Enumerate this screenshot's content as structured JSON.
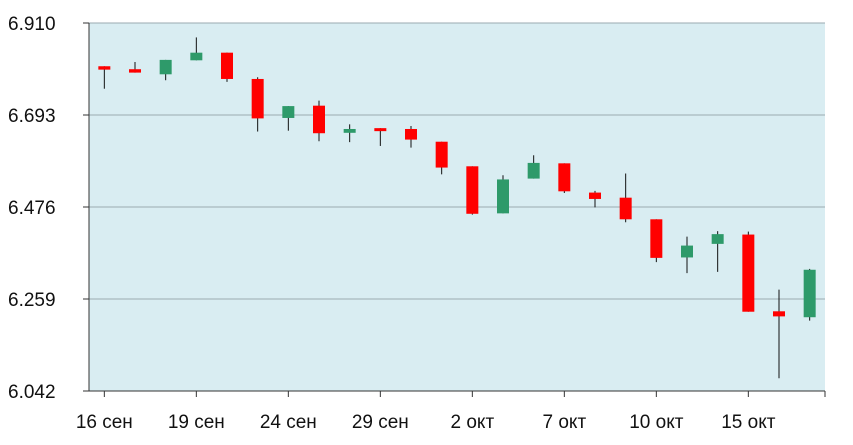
{
  "chart_data": {
    "type": "candlestick",
    "title": "",
    "xlabel": "",
    "ylabel": "",
    "ylim": [
      6.042,
      6.91
    ],
    "yticks": [
      "6.910",
      "6.693",
      "6.476",
      "6.259",
      "6.042"
    ],
    "xticks": [
      {
        "label": "16 сен",
        "index": 0
      },
      {
        "label": "19 сен",
        "index": 3
      },
      {
        "label": "24 сен",
        "index": 6
      },
      {
        "label": "29 сен",
        "index": 9
      },
      {
        "label": "2 окт",
        "index": 12
      },
      {
        "label": "7 окт",
        "index": 15
      },
      {
        "label": "10 окт",
        "index": 18
      },
      {
        "label": "15 окт",
        "index": 21
      }
    ],
    "grid": true,
    "colors": {
      "up": "#2e9a6a",
      "down": "#ff0000",
      "background": "#d9edf2",
      "grid": "#9aaab0",
      "wick": "#111111"
    },
    "candles": [
      {
        "open": 6.808,
        "close": 6.8,
        "high": 6.808,
        "low": 6.755
      },
      {
        "open": 6.801,
        "close": 6.793,
        "high": 6.818,
        "low": 6.793
      },
      {
        "open": 6.789,
        "close": 6.823,
        "high": 6.823,
        "low": 6.775
      },
      {
        "open": 6.822,
        "close": 6.84,
        "high": 6.876,
        "low": 6.822
      },
      {
        "open": 6.84,
        "close": 6.778,
        "high": 6.84,
        "low": 6.771
      },
      {
        "open": 6.778,
        "close": 6.685,
        "high": 6.782,
        "low": 6.654
      },
      {
        "open": 6.686,
        "close": 6.714,
        "high": 6.714,
        "low": 6.656
      },
      {
        "open": 6.715,
        "close": 6.65,
        "high": 6.727,
        "low": 6.631
      },
      {
        "open": 6.651,
        "close": 6.66,
        "high": 6.671,
        "low": 6.629
      },
      {
        "open": 6.662,
        "close": 6.66,
        "high": 6.662,
        "low": 6.62
      },
      {
        "open": 6.66,
        "close": 6.635,
        "high": 6.667,
        "low": 6.616
      },
      {
        "open": 6.63,
        "close": 6.569,
        "high": 6.63,
        "low": 6.553
      },
      {
        "open": 6.572,
        "close": 6.46,
        "high": 6.572,
        "low": 6.458
      },
      {
        "open": 6.461,
        "close": 6.541,
        "high": 6.551,
        "low": 6.461
      },
      {
        "open": 6.543,
        "close": 6.58,
        "high": 6.598,
        "low": 6.543
      },
      {
        "open": 6.579,
        "close": 6.513,
        "high": 6.579,
        "low": 6.509
      },
      {
        "open": 6.51,
        "close": 6.495,
        "high": 6.514,
        "low": 6.475
      },
      {
        "open": 6.498,
        "close": 6.447,
        "high": 6.555,
        "low": 6.44
      },
      {
        "open": 6.447,
        "close": 6.356,
        "high": 6.447,
        "low": 6.346
      },
      {
        "open": 6.357,
        "close": 6.385,
        "high": 6.406,
        "low": 6.32
      },
      {
        "open": 6.389,
        "close": 6.412,
        "high": 6.419,
        "low": 6.323
      },
      {
        "open": 6.411,
        "close": 6.229,
        "high": 6.418,
        "low": 6.229
      },
      {
        "open": 6.23,
        "close": 6.218,
        "high": 6.281,
        "low": 6.072
      },
      {
        "open": 6.216,
        "close": 6.328,
        "high": 6.33,
        "low": 6.208
      }
    ]
  }
}
